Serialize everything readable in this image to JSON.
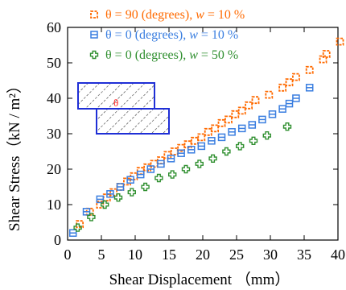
{
  "chart_data": {
    "type": "scatter",
    "xlabel": "Shear Displacement （mm）",
    "ylabel": "Shear Stress（kN / m²）",
    "xlim": [
      0,
      40
    ],
    "ylim": [
      0,
      60
    ],
    "xticks": [
      0,
      5,
      10,
      15,
      20,
      25,
      30,
      35,
      40
    ],
    "yticks": [
      0,
      10,
      20,
      30,
      40,
      50,
      60
    ],
    "grid": false,
    "legend_position": "top-right",
    "inset_label": "θ",
    "series": [
      {
        "name": "θ = 90 (degrees), w = 10 %",
        "legend": {
          "prefix": "θ = 90 (degrees), ",
          "var": "w",
          "suffix": " = 10 %"
        },
        "color": "#ff6a00",
        "marker": "square-open",
        "x": [
          1.8,
          3.3,
          4.8,
          5.8,
          6.8,
          7.8,
          8.8,
          9.8,
          10.8,
          11.8,
          12.8,
          13.8,
          14.8,
          15.8,
          16.8,
          17.8,
          18.8,
          19.8,
          20.8,
          21.8,
          22.8,
          23.8,
          24.8,
          25.8,
          26.8,
          27.8,
          29.8,
          31.8,
          32.8,
          33.8,
          35.8,
          37.8,
          38.3,
          40.3
        ],
        "y": [
          4.5,
          8.0,
          10.0,
          12.0,
          13.5,
          15.0,
          16.5,
          18.0,
          19.5,
          20.5,
          21.5,
          22.5,
          24.0,
          25.0,
          26.0,
          27.0,
          28.0,
          29.0,
          30.5,
          31.5,
          33.0,
          34.0,
          35.5,
          36.5,
          38.0,
          39.5,
          41.0,
          43.0,
          44.5,
          46.0,
          48.0,
          51.0,
          52.5,
          56.0
        ]
      },
      {
        "name": "θ = 0 (degrees), w = 10 %",
        "legend": {
          "prefix": "θ = 0 (degrees), ",
          "var": "w",
          "suffix": " = 10 %"
        },
        "color": "#3a7ee0",
        "marker": "square-bar",
        "x": [
          0.8,
          2.8,
          4.8,
          6.3,
          7.8,
          9.3,
          10.8,
          12.3,
          13.8,
          15.3,
          16.8,
          18.3,
          19.8,
          21.3,
          22.8,
          24.3,
          25.8,
          27.3,
          28.8,
          30.3,
          31.8,
          32.8,
          33.8,
          35.8
        ],
        "y": [
          2.0,
          8.0,
          11.5,
          13.0,
          15.0,
          17.0,
          18.5,
          20.0,
          21.5,
          23.0,
          24.5,
          25.5,
          26.5,
          28.0,
          29.0,
          30.5,
          31.5,
          32.5,
          34.0,
          35.5,
          37.0,
          38.5,
          40.0,
          43.0
        ]
      },
      {
        "name": "θ = 0 (degrees), w = 50 %",
        "legend": {
          "prefix": "θ = 0 (degrees), ",
          "var": "w",
          "suffix": " = 50 %"
        },
        "color": "#2f8f2f",
        "marker": "cross-open",
        "x": [
          1.5,
          3.5,
          5.5,
          7.5,
          9.5,
          11.5,
          13.5,
          15.5,
          17.5,
          19.5,
          21.5,
          23.5,
          25.5,
          27.5,
          29.5,
          32.5
        ],
        "y": [
          3.5,
          6.5,
          10.0,
          12.0,
          13.5,
          15.0,
          17.5,
          18.5,
          20.0,
          21.5,
          23.0,
          25.0,
          26.5,
          28.0,
          29.5,
          32.0
        ]
      }
    ]
  }
}
